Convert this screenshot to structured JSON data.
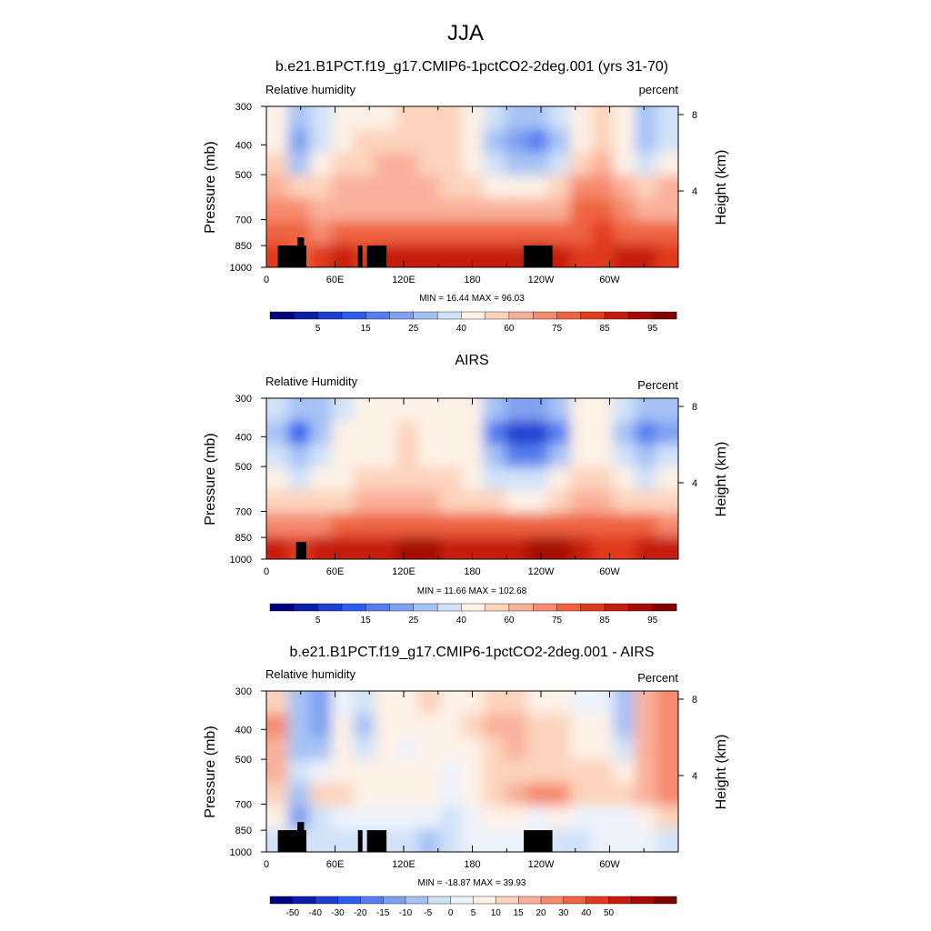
{
  "figure_title": "JJA",
  "colors": {
    "rh_scale": [
      "#00007f",
      "#0a1fa6",
      "#1c3fd0",
      "#2e5ef0",
      "#557df0",
      "#7fa1f0",
      "#a6c2f5",
      "#d1e2f8",
      "#fdf1e6",
      "#fcd3bc",
      "#f9b09a",
      "#f58a6e",
      "#ef6340",
      "#e03a1f",
      "#c61c0e",
      "#a40b06",
      "#7f0000"
    ],
    "diff_scale": [
      "#00007f",
      "#0a1fa6",
      "#1c3fd0",
      "#2e5ef0",
      "#557df0",
      "#7fa1f0",
      "#a6c2f5",
      "#d1e2f8",
      "#eef2fb",
      "#fdf1e6",
      "#fcd3bc",
      "#f9b09a",
      "#f58a6e",
      "#ef6340",
      "#e03a1f",
      "#c61c0e",
      "#a40b06",
      "#7f0000"
    ],
    "topography": "#000000"
  },
  "chart_data": [
    {
      "type": "heatmap",
      "title": "b.e21.B1PCT.f19_g17.CMIP6-1pctCO2-2deg.001 (yrs 31-70)",
      "left_label": "Relative humidity",
      "right_label": "percent",
      "ylabel": "Pressure (mb)",
      "ylabel_right": "Height (km)",
      "x_ticks": [
        "0",
        "60E",
        "120E",
        "180",
        "120W",
        "60W"
      ],
      "y_ticks": [
        "300",
        "400",
        "500",
        "700",
        "850",
        "1000"
      ],
      "y_ticks_right": [
        "8",
        "4"
      ],
      "ylim": [
        1000,
        300
      ],
      "stats": "MIN =  16.44  MAX =  96.03",
      "colorbar_labels": [
        "5",
        "15",
        "25",
        "40",
        "60",
        "75",
        "85",
        "95"
      ],
      "field": [
        [
          52,
          35,
          40,
          52,
          55,
          58,
          60,
          62,
          60,
          55,
          42,
          32,
          30,
          40,
          55,
          60,
          52,
          35,
          42
        ],
        [
          55,
          25,
          48,
          58,
          60,
          62,
          63,
          63,
          60,
          52,
          38,
          25,
          22,
          38,
          58,
          62,
          50,
          30,
          45
        ],
        [
          60,
          35,
          52,
          62,
          64,
          65,
          65,
          64,
          62,
          55,
          45,
          35,
          32,
          45,
          64,
          66,
          58,
          45,
          55
        ],
        [
          70,
          60,
          62,
          67,
          68,
          68,
          68,
          66,
          64,
          60,
          57,
          52,
          52,
          62,
          76,
          75,
          70,
          62,
          65
        ],
        [
          76,
          75,
          72,
          72,
          72,
          73,
          74,
          74,
          73,
          72,
          70,
          68,
          70,
          74,
          82,
          80,
          76,
          74,
          74
        ],
        [
          80,
          82,
          78,
          80,
          82,
          83,
          84,
          84,
          84,
          84,
          84,
          84,
          83,
          84,
          84,
          85,
          83,
          82,
          82
        ],
        [
          86,
          84,
          86,
          90,
          88,
          90,
          92,
          92,
          94,
          93,
          93,
          94,
          96,
          92,
          88,
          86,
          90,
          92,
          88
        ]
      ],
      "topography_blocks": [
        [
          10,
          27,
          850,
          920
        ],
        [
          27,
          33,
          800,
          920
        ],
        [
          33,
          35,
          850,
          920
        ],
        [
          80,
          84,
          850,
          920
        ],
        [
          88,
          105,
          850,
          920
        ],
        [
          225,
          250,
          850,
          920
        ]
      ]
    },
    {
      "type": "heatmap",
      "title": "AIRS",
      "left_label": "Relative Humidity",
      "right_label": "Percent",
      "ylabel": "Pressure (mb)",
      "ylabel_right": "Height (km)",
      "x_ticks": [
        "0",
        "60E",
        "120E",
        "180",
        "120W",
        "60W"
      ],
      "y_ticks": [
        "300",
        "400",
        "500",
        "700",
        "850",
        "1000"
      ],
      "y_ticks_right": [
        "8",
        "4"
      ],
      "ylim": [
        1000,
        300
      ],
      "stats": "MIN =  11.66  MAX = 102.68",
      "colorbar_labels": [
        "5",
        "15",
        "25",
        "40",
        "60",
        "75",
        "85",
        "95"
      ],
      "field": [
        [
          40,
          32,
          38,
          48,
          58,
          56,
          58,
          52,
          55,
          50,
          32,
          25,
          25,
          30,
          52,
          55,
          42,
          30,
          38
        ],
        [
          35,
          15,
          38,
          50,
          56,
          55,
          60,
          56,
          56,
          50,
          20,
          12,
          12,
          20,
          50,
          50,
          32,
          20,
          28
        ],
        [
          45,
          30,
          45,
          55,
          58,
          58,
          60,
          58,
          56,
          52,
          30,
          20,
          20,
          32,
          55,
          55,
          40,
          30,
          40
        ],
        [
          52,
          48,
          55,
          58,
          60,
          62,
          62,
          62,
          60,
          56,
          48,
          42,
          42,
          50,
          62,
          60,
          52,
          48,
          50
        ],
        [
          60,
          62,
          62,
          64,
          66,
          66,
          68,
          66,
          64,
          62,
          60,
          58,
          58,
          62,
          70,
          66,
          64,
          62,
          62
        ],
        [
          75,
          78,
          78,
          80,
          82,
          84,
          84,
          84,
          82,
          80,
          80,
          80,
          82,
          84,
          82,
          80,
          80,
          80,
          78
        ],
        [
          92,
          86,
          90,
          92,
          92,
          94,
          96,
          98,
          94,
          92,
          90,
          92,
          96,
          96,
          90,
          86,
          88,
          90,
          90
        ]
      ],
      "topography_blocks": [
        [
          26,
          35,
          880,
          1000
        ]
      ]
    },
    {
      "type": "heatmap",
      "title": "b.e21.B1PCT.f19_g17.CMIP6-1pctCO2-2deg.001 - AIRS",
      "left_label": "Relative humidity",
      "right_label": "Percent",
      "ylabel": "Pressure (mb)",
      "ylabel_right": "Height (km)",
      "x_ticks": [
        "0",
        "60E",
        "120E",
        "180",
        "120W",
        "60W"
      ],
      "y_ticks": [
        "300",
        "400",
        "500",
        "700",
        "850",
        "1000"
      ],
      "y_ticks_right": [
        "8",
        "4"
      ],
      "ylim": [
        1000,
        300
      ],
      "stats": "MIN = -18.87  MAX =  39.93",
      "colorbar_labels": [
        "-50",
        "-40",
        "-30",
        "-20",
        "-15",
        "-10",
        "-5",
        "0",
        "5",
        "10",
        "15",
        "20",
        "30",
        "40",
        "50"
      ],
      "field": [
        [
          12,
          -8,
          -12,
          4,
          -3,
          5,
          8,
          10,
          5,
          8,
          10,
          12,
          5,
          8,
          2,
          4,
          -8,
          15,
          22
        ],
        [
          20,
          -10,
          -15,
          6,
          -6,
          6,
          5,
          8,
          6,
          10,
          16,
          15,
          10,
          12,
          5,
          5,
          -10,
          18,
          25
        ],
        [
          18,
          -8,
          -10,
          6,
          -4,
          6,
          4,
          6,
          5,
          8,
          14,
          18,
          12,
          14,
          6,
          8,
          -5,
          18,
          25
        ],
        [
          15,
          -5,
          4,
          8,
          5,
          8,
          5,
          6,
          3,
          5,
          10,
          12,
          10,
          12,
          12,
          12,
          8,
          15,
          22
        ],
        [
          12,
          -10,
          10,
          10,
          5,
          6,
          5,
          5,
          4,
          8,
          14,
          18,
          22,
          24,
          10,
          10,
          10,
          15,
          20
        ],
        [
          6,
          -12,
          -2,
          2,
          4,
          4,
          3,
          2,
          -2,
          3,
          6,
          8,
          4,
          8,
          2,
          4,
          2,
          5,
          10
        ],
        [
          -5,
          -2,
          -4,
          -2,
          -5,
          -4,
          -4,
          -6,
          -2,
          1,
          2,
          2,
          2,
          -2,
          -2,
          0,
          2,
          1,
          -2
        ]
      ],
      "topography_blocks": [
        [
          10,
          27,
          850,
          920
        ],
        [
          27,
          33,
          800,
          920
        ],
        [
          33,
          35,
          850,
          920
        ],
        [
          80,
          84,
          850,
          920
        ],
        [
          88,
          105,
          850,
          920
        ],
        [
          225,
          250,
          850,
          920
        ]
      ]
    }
  ],
  "diff_thresholds": [
    -50,
    -40,
    -30,
    -20,
    -15,
    -10,
    -5,
    0,
    5,
    10,
    15,
    20,
    30,
    40,
    50
  ],
  "rh_thresholds": [
    5,
    10,
    15,
    20,
    25,
    30,
    40,
    50,
    60,
    65,
    75,
    80,
    85,
    90,
    95,
    100
  ]
}
